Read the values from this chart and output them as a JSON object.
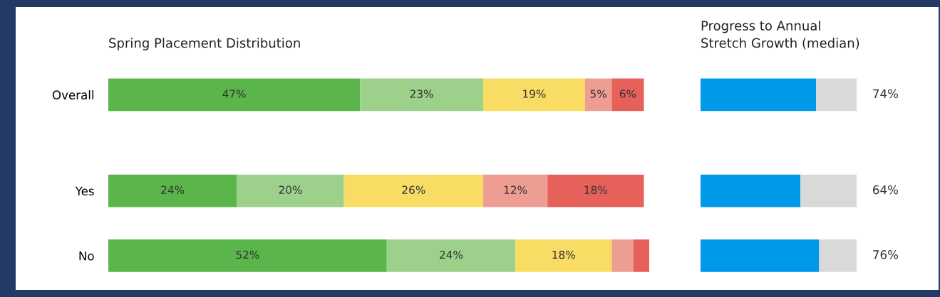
{
  "chart_data": [
    {
      "type": "bar",
      "orientation": "horizontal",
      "stacked": true,
      "title": "Spring Placement Distribution",
      "categories": [
        "Overall",
        "Yes",
        "No"
      ],
      "tick_labels": "y",
      "grid": false,
      "legend": false,
      "series": [
        {
          "color": "#5ab54b",
          "values": [
            47,
            24,
            52
          ],
          "value_labels": [
            "47%",
            "24%",
            "52%"
          ]
        },
        {
          "color": "#9dd08a",
          "values": [
            23,
            20,
            24
          ],
          "value_labels": [
            "23%",
            "20%",
            "24%"
          ]
        },
        {
          "color": "#f8dc64",
          "values": [
            19,
            26,
            18
          ],
          "value_labels": [
            "19%",
            "26%",
            "18%"
          ]
        },
        {
          "color": "#ee9d92",
          "values": [
            5,
            12,
            4
          ],
          "value_labels": [
            "5%",
            "12%",
            null
          ]
        },
        {
          "color": "#e5615a",
          "values": [
            6,
            18,
            3
          ],
          "value_labels": [
            "6%",
            "18%",
            null
          ]
        }
      ]
    },
    {
      "type": "bar",
      "orientation": "horizontal",
      "stacked": true,
      "title": "Progress to Annual\nStretch Growth (median)",
      "categories": [
        null,
        null,
        null
      ],
      "tick_labels": false,
      "grid": false,
      "legend": false,
      "series": [
        {
          "color": "#0098e8",
          "values": [
            74,
            64,
            76
          ],
          "value_labels": [
            "74%",
            "64%",
            "76%"
          ]
        },
        {
          "color": "#d9d9d9",
          "values": [
            26,
            36,
            24
          ]
        }
      ]
    }
  ]
}
